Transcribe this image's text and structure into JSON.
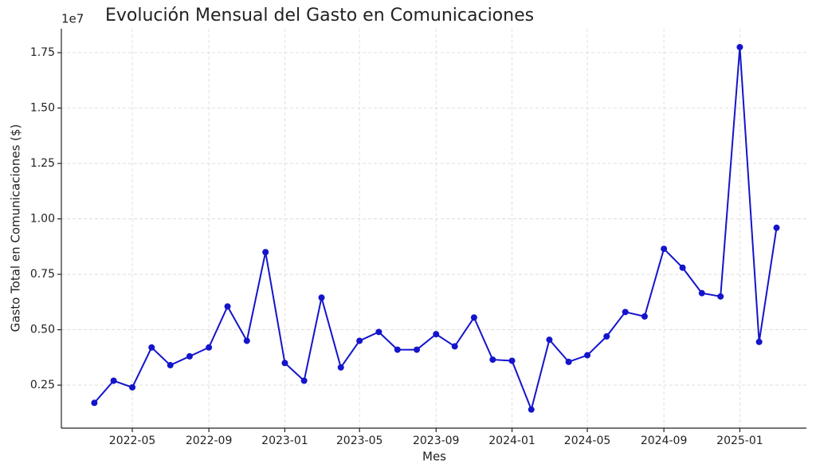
{
  "chart_data": {
    "type": "line",
    "title": "Evolución Mensual del Gasto en Comunicaciones",
    "x_label": "Mes",
    "y_label": "Gasto Total en Comunicaciones ($)",
    "y_offset_label": "1e7",
    "x": [
      "2022-03",
      "2022-04",
      "2022-05",
      "2022-06",
      "2022-07",
      "2022-08",
      "2022-09",
      "2022-10",
      "2022-11",
      "2022-12",
      "2023-01",
      "2023-02",
      "2023-03",
      "2023-04",
      "2023-05",
      "2023-06",
      "2023-07",
      "2023-08",
      "2023-09",
      "2023-10",
      "2023-11",
      "2023-12",
      "2024-01",
      "2024-02",
      "2024-03",
      "2024-04",
      "2024-05",
      "2024-06",
      "2024-07",
      "2024-08",
      "2024-09",
      "2024-10",
      "2024-11",
      "2024-12",
      "2025-01",
      "2025-02",
      "2025-03"
    ],
    "series": [
      {
        "color": "#1414cc",
        "values": [
          1700000,
          2700000,
          2400000,
          4200000,
          3400000,
          3800000,
          4200000,
          6050000,
          4500000,
          8500000,
          3500000,
          2700000,
          6450000,
          3300000,
          4500000,
          4900000,
          4100000,
          4100000,
          4800000,
          4250000,
          5550000,
          3650000,
          3600000,
          1400000,
          4550000,
          3550000,
          3850000,
          4700000,
          5800000,
          5600000,
          8650000,
          7800000,
          6650000,
          6500000,
          17750000,
          4450000,
          9600000
        ]
      }
    ],
    "xlim": [
      "2022-01-07",
      "2025-04-18"
    ],
    "xticks": [
      "2022-05",
      "2022-09",
      "2023-01",
      "2023-05",
      "2023-09",
      "2024-01",
      "2024-05",
      "2024-09",
      "2025-01"
    ],
    "ylim": [
      560000,
      18580000
    ],
    "yticks": [
      {
        "value": 2500000,
        "label": "0.25"
      },
      {
        "value": 5000000,
        "label": "0.50"
      },
      {
        "value": 7500000,
        "label": "0.75"
      },
      {
        "value": 10000000,
        "label": "1.00"
      },
      {
        "value": 12500000,
        "label": "1.25"
      },
      {
        "value": 15000000,
        "label": "1.50"
      },
      {
        "value": 17500000,
        "label": "1.75"
      }
    ],
    "grid": true
  }
}
